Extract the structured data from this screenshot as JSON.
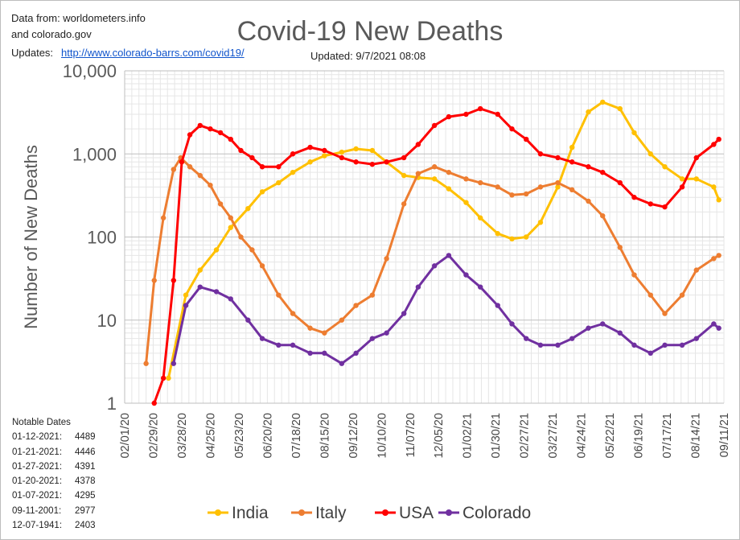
{
  "header": {
    "source_line1": "Data from: worldometers.info",
    "source_line2": "and colorado.gov",
    "updates_label": "Updates:",
    "updates_link": "http://www.colorado-barrs.com/covid19/",
    "updated": "Updated:  9/7/2021 08:08"
  },
  "notable": {
    "title": "Notable Dates",
    "rows": [
      {
        "date": "01-12-2021:",
        "value": "4489"
      },
      {
        "date": "01-21-2021:",
        "value": "4446"
      },
      {
        "date": "01-27-2021:",
        "value": "4391"
      },
      {
        "date": "01-20-2021:",
        "value": "4378"
      },
      {
        "date": "01-07-2021:",
        "value": "4295"
      },
      {
        "date": "09-11-2001:",
        "value": "2977"
      },
      {
        "date": "12-07-1941:",
        "value": "2403"
      }
    ]
  },
  "chart_data": {
    "type": "line",
    "title": "Covid-19 New Deaths",
    "ylabel": "Number of New Deaths",
    "xlabel": "",
    "yscale": "log",
    "ylim": [
      1,
      10000
    ],
    "yticks": [
      "1",
      "10",
      "100",
      "1,000",
      "10,000"
    ],
    "xlim": [
      "2020-02-01",
      "2021-09-11"
    ],
    "xticks": [
      "02/01/20",
      "02/29/20",
      "03/28/20",
      "04/25/20",
      "05/23/20",
      "06/20/20",
      "07/18/20",
      "08/15/20",
      "09/12/20",
      "10/10/20",
      "11/07/20",
      "12/05/20",
      "01/02/21",
      "01/30/21",
      "02/27/21",
      "03/27/21",
      "04/24/21",
      "05/22/21",
      "06/19/21",
      "07/17/21",
      "08/14/21",
      "09/11/21"
    ],
    "grid": true,
    "legend_position": "bottom",
    "series": [
      {
        "name": "India",
        "color": "#ffc000",
        "x": [
          "2020-03-15",
          "2020-04-01",
          "2020-04-15",
          "2020-05-01",
          "2020-05-15",
          "2020-06-01",
          "2020-06-15",
          "2020-07-01",
          "2020-07-15",
          "2020-08-01",
          "2020-08-15",
          "2020-09-01",
          "2020-09-15",
          "2020-10-01",
          "2020-10-15",
          "2020-11-01",
          "2020-11-15",
          "2020-12-01",
          "2020-12-15",
          "2021-01-01",
          "2021-01-15",
          "2021-02-01",
          "2021-02-15",
          "2021-03-01",
          "2021-03-15",
          "2021-04-01",
          "2021-04-15",
          "2021-05-01",
          "2021-05-15",
          "2021-06-01",
          "2021-06-15",
          "2021-07-01",
          "2021-07-15",
          "2021-08-01",
          "2021-08-15",
          "2021-09-01",
          "2021-09-06"
        ],
        "values": [
          2,
          20,
          40,
          70,
          130,
          220,
          350,
          450,
          600,
          800,
          950,
          1050,
          1150,
          1100,
          800,
          550,
          520,
          500,
          380,
          260,
          170,
          110,
          95,
          100,
          150,
          400,
          1200,
          3200,
          4200,
          3500,
          1800,
          1000,
          700,
          500,
          500,
          400,
          280
        ]
      },
      {
        "name": "Italy",
        "color": "#ed7d31",
        "x": [
          "2020-02-22",
          "2020-03-01",
          "2020-03-10",
          "2020-03-20",
          "2020-03-27",
          "2020-04-05",
          "2020-04-15",
          "2020-04-25",
          "2020-05-05",
          "2020-05-15",
          "2020-05-25",
          "2020-06-05",
          "2020-06-15",
          "2020-07-01",
          "2020-07-15",
          "2020-08-01",
          "2020-08-15",
          "2020-09-01",
          "2020-09-15",
          "2020-10-01",
          "2020-10-15",
          "2020-11-01",
          "2020-11-15",
          "2020-12-01",
          "2020-12-15",
          "2021-01-01",
          "2021-01-15",
          "2021-02-01",
          "2021-02-15",
          "2021-03-01",
          "2021-03-15",
          "2021-04-01",
          "2021-04-15",
          "2021-05-01",
          "2021-05-15",
          "2021-06-01",
          "2021-06-15",
          "2021-07-01",
          "2021-07-15",
          "2021-08-01",
          "2021-08-15",
          "2021-09-01",
          "2021-09-06"
        ],
        "values": [
          3,
          30,
          170,
          650,
          900,
          700,
          550,
          420,
          250,
          170,
          100,
          70,
          45,
          20,
          12,
          8,
          7,
          10,
          15,
          20,
          55,
          250,
          580,
          700,
          600,
          500,
          450,
          400,
          320,
          330,
          400,
          450,
          370,
          270,
          180,
          75,
          35,
          20,
          12,
          20,
          40,
          55,
          60
        ]
      },
      {
        "name": "USA",
        "color": "#ff0000",
        "x": [
          "2020-03-01",
          "2020-03-10",
          "2020-03-20",
          "2020-03-28",
          "2020-04-05",
          "2020-04-15",
          "2020-04-25",
          "2020-05-05",
          "2020-05-15",
          "2020-05-25",
          "2020-06-05",
          "2020-06-15",
          "2020-07-01",
          "2020-07-15",
          "2020-08-01",
          "2020-08-15",
          "2020-09-01",
          "2020-09-15",
          "2020-10-01",
          "2020-10-15",
          "2020-11-01",
          "2020-11-15",
          "2020-12-01",
          "2020-12-15",
          "2021-01-01",
          "2021-01-15",
          "2021-02-01",
          "2021-02-15",
          "2021-03-01",
          "2021-03-15",
          "2021-04-01",
          "2021-04-15",
          "2021-05-01",
          "2021-05-15",
          "2021-06-01",
          "2021-06-15",
          "2021-07-01",
          "2021-07-15",
          "2021-08-01",
          "2021-08-15",
          "2021-09-01",
          "2021-09-06"
        ],
        "values": [
          1,
          2,
          30,
          800,
          1700,
          2200,
          2000,
          1800,
          1500,
          1100,
          900,
          700,
          700,
          1000,
          1200,
          1100,
          900,
          800,
          750,
          800,
          900,
          1300,
          2200,
          2800,
          3000,
          3500,
          3000,
          2000,
          1500,
          1000,
          900,
          800,
          700,
          600,
          450,
          300,
          250,
          230,
          400,
          900,
          1300,
          1500
        ]
      },
      {
        "name": "Colorado",
        "color": "#7030a0",
        "x": [
          "2020-03-20",
          "2020-04-01",
          "2020-04-15",
          "2020-05-01",
          "2020-05-15",
          "2020-06-01",
          "2020-06-15",
          "2020-07-01",
          "2020-07-15",
          "2020-08-01",
          "2020-08-15",
          "2020-09-01",
          "2020-09-15",
          "2020-10-01",
          "2020-10-15",
          "2020-11-01",
          "2020-11-15",
          "2020-12-01",
          "2020-12-15",
          "2021-01-01",
          "2021-01-15",
          "2021-02-01",
          "2021-02-15",
          "2021-03-01",
          "2021-03-15",
          "2021-04-01",
          "2021-04-15",
          "2021-05-01",
          "2021-05-15",
          "2021-06-01",
          "2021-06-15",
          "2021-07-01",
          "2021-07-15",
          "2021-08-01",
          "2021-08-15",
          "2021-09-01",
          "2021-09-06"
        ],
        "values": [
          3,
          15,
          25,
          22,
          18,
          10,
          6,
          5,
          5,
          4,
          4,
          3,
          4,
          6,
          7,
          12,
          25,
          45,
          60,
          35,
          25,
          15,
          9,
          6,
          5,
          5,
          6,
          8,
          9,
          7,
          5,
          4,
          5,
          5,
          6,
          9,
          8
        ]
      }
    ]
  }
}
